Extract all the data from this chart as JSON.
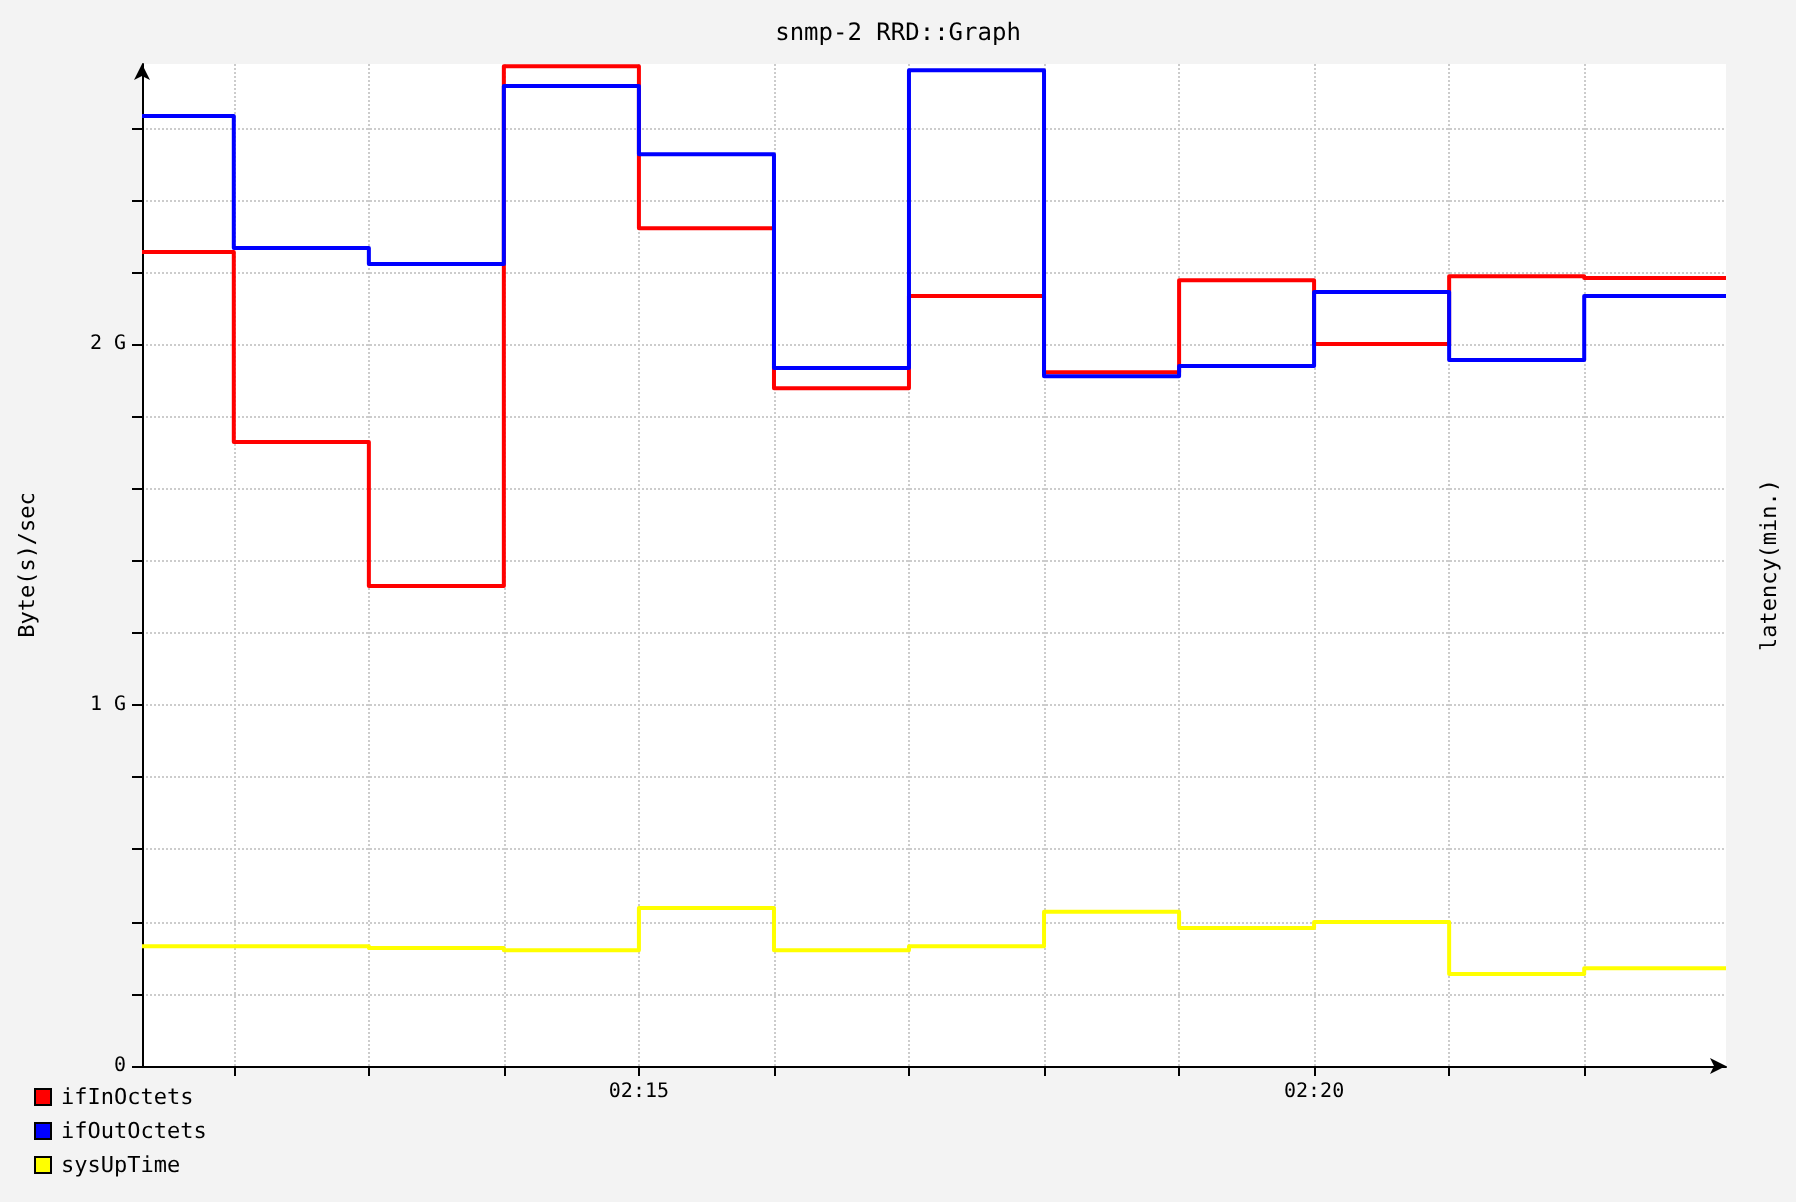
{
  "chart_data": {
    "type": "step",
    "title": "snmp-2 RRD::Graph",
    "ylabel": "Byte(s)/sec",
    "y2label": "latency(min.)",
    "xlim": [
      2.18867,
      2.38417
    ],
    "xticks": [
      {
        "value": 2.2,
        "label": null
      },
      {
        "value": 2.21667,
        "label": null
      },
      {
        "value": 2.23333,
        "label": null
      },
      {
        "value": 2.25,
        "label": "02:15"
      },
      {
        "value": 2.26667,
        "label": null
      },
      {
        "value": 2.28333,
        "label": null
      },
      {
        "value": 2.3,
        "label": null
      },
      {
        "value": 2.31667,
        "label": null
      },
      {
        "value": 2.33333,
        "label": "02:20"
      },
      {
        "value": 2.35,
        "label": null
      },
      {
        "value": 2.36667,
        "label": null
      }
    ],
    "ylim": [
      0,
      2.776
    ],
    "yticks": [
      {
        "value": 0,
        "label": "0"
      },
      {
        "value": 0.2,
        "label": null
      },
      {
        "value": 0.4,
        "label": null
      },
      {
        "value": 0.6,
        "label": null
      },
      {
        "value": 0.8,
        "label": null
      },
      {
        "value": 1,
        "label": "1 G"
      },
      {
        "value": 1.2,
        "label": null
      },
      {
        "value": 1.4,
        "label": null
      },
      {
        "value": 1.6,
        "label": null
      },
      {
        "value": 1.8,
        "label": null
      },
      {
        "value": 2,
        "label": "2 G"
      },
      {
        "value": 2.2,
        "label": null
      },
      {
        "value": 2.4,
        "label": null
      },
      {
        "value": 2.6,
        "label": null
      }
    ],
    "x": [
      2.18867,
      2.2,
      2.21667,
      2.23333,
      2.25,
      2.26667,
      2.28333,
      2.3,
      2.31667,
      2.33333,
      2.35,
      2.36667,
      2.38417
    ],
    "series": [
      {
        "name": "ifInOctets",
        "color": "#ff0000",
        "values": [
          2.255,
          1.729,
          1.33,
          2.77,
          2.321,
          1.878,
          2.133,
          1.922,
          2.177,
          2.0,
          2.188,
          2.183,
          2.183
        ]
      },
      {
        "name": "ifOutOctets",
        "color": "#0000ff",
        "values": [
          2.632,
          2.266,
          2.222,
          2.715,
          2.526,
          1.934,
          2.759,
          1.911,
          1.939,
          2.144,
          1.956,
          2.133,
          2.133
        ]
      },
      {
        "name": "sysUpTime",
        "color": "#ffff00",
        "values": [
          0.332,
          0.332,
          0.327,
          0.321,
          0.438,
          0.321,
          0.332,
          0.427,
          0.382,
          0.399,
          0.255,
          0.271,
          0.271
        ]
      }
    ],
    "grid": true,
    "legend": "bottom left",
    "marker": "none",
    "line_style": "solid"
  }
}
